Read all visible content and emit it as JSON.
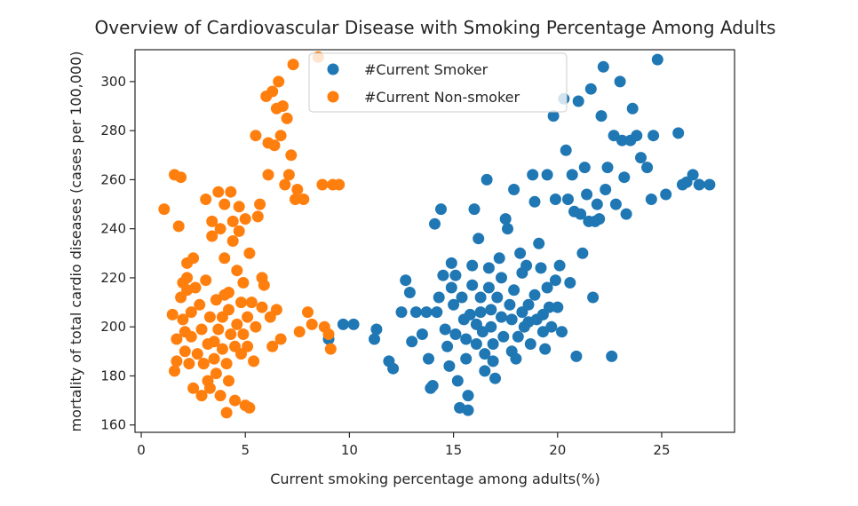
{
  "chart_data": {
    "type": "scatter",
    "title": "Overview of Cardiovascular Disease with Smoking Percentage Among Adults",
    "xlabel": "Current smoking percentage among adults(%)",
    "ylabel": "mortality of total cardio diseases (cases per 100,000)",
    "xlim": [
      -0.3,
      28.5
    ],
    "ylim": [
      157,
      313
    ],
    "xticks": [
      0,
      5,
      10,
      15,
      20,
      25
    ],
    "yticks": [
      160,
      180,
      200,
      220,
      240,
      260,
      280,
      300
    ],
    "grid": false,
    "legend_position": "upper-center",
    "series": [
      {
        "name": "#Current Smoker",
        "color": "#1f77b4",
        "points": [
          [
            9.0,
            195
          ],
          [
            9.7,
            201
          ],
          [
            10.2,
            201
          ],
          [
            11.2,
            195
          ],
          [
            11.3,
            199
          ],
          [
            11.9,
            186
          ],
          [
            12.1,
            183
          ],
          [
            12.5,
            206
          ],
          [
            12.7,
            219
          ],
          [
            12.9,
            214
          ],
          [
            13.0,
            194
          ],
          [
            13.2,
            206
          ],
          [
            13.5,
            197
          ],
          [
            13.7,
            206
          ],
          [
            13.8,
            187
          ],
          [
            13.9,
            175
          ],
          [
            14.0,
            176
          ],
          [
            14.1,
            242
          ],
          [
            14.3,
            212
          ],
          [
            14.2,
            206
          ],
          [
            14.4,
            248
          ],
          [
            14.5,
            221
          ],
          [
            14.6,
            199
          ],
          [
            14.7,
            192
          ],
          [
            14.8,
            184
          ],
          [
            14.9,
            226
          ],
          [
            14.9,
            216
          ],
          [
            15.0,
            209
          ],
          [
            15.1,
            197
          ],
          [
            15.1,
            221
          ],
          [
            15.2,
            178
          ],
          [
            15.3,
            167
          ],
          [
            15.4,
            212
          ],
          [
            15.5,
            203
          ],
          [
            15.6,
            195
          ],
          [
            15.6,
            187
          ],
          [
            15.7,
            172
          ],
          [
            15.7,
            166
          ],
          [
            15.8,
            205
          ],
          [
            15.9,
            225
          ],
          [
            15.9,
            217
          ],
          [
            16.0,
            248
          ],
          [
            16.1,
            201
          ],
          [
            16.1,
            193
          ],
          [
            16.2,
            236
          ],
          [
            16.3,
            212
          ],
          [
            16.3,
            206
          ],
          [
            16.4,
            198
          ],
          [
            16.5,
            189
          ],
          [
            16.5,
            182
          ],
          [
            16.6,
            260
          ],
          [
            16.7,
            224
          ],
          [
            16.7,
            216
          ],
          [
            16.8,
            207
          ],
          [
            16.8,
            200
          ],
          [
            16.9,
            193
          ],
          [
            16.9,
            186
          ],
          [
            17.0,
            179
          ],
          [
            17.1,
            212
          ],
          [
            17.2,
            228
          ],
          [
            17.3,
            220
          ],
          [
            17.3,
            204
          ],
          [
            17.4,
            196
          ],
          [
            17.5,
            244
          ],
          [
            17.6,
            240
          ],
          [
            17.7,
            209
          ],
          [
            17.8,
            203
          ],
          [
            17.8,
            190
          ],
          [
            17.9,
            256
          ],
          [
            17.9,
            215
          ],
          [
            18.0,
            187
          ],
          [
            18.1,
            196
          ],
          [
            18.2,
            230
          ],
          [
            18.3,
            222
          ],
          [
            18.3,
            206
          ],
          [
            18.4,
            200
          ],
          [
            18.5,
            225
          ],
          [
            18.6,
            209
          ],
          [
            18.6,
            202
          ],
          [
            18.7,
            193
          ],
          [
            18.8,
            262
          ],
          [
            18.9,
            251
          ],
          [
            18.9,
            213
          ],
          [
            19.0,
            203
          ],
          [
            19.1,
            234
          ],
          [
            19.2,
            224
          ],
          [
            19.3,
            205
          ],
          [
            19.3,
            198
          ],
          [
            19.4,
            191
          ],
          [
            19.5,
            262
          ],
          [
            19.5,
            216
          ],
          [
            19.6,
            208
          ],
          [
            19.7,
            200
          ],
          [
            19.8,
            286
          ],
          [
            19.9,
            252
          ],
          [
            19.9,
            219
          ],
          [
            20.0,
            208
          ],
          [
            20.1,
            225
          ],
          [
            20.2,
            198
          ],
          [
            20.3,
            293
          ],
          [
            20.4,
            272
          ],
          [
            20.5,
            252
          ],
          [
            20.6,
            218
          ],
          [
            20.7,
            262
          ],
          [
            20.8,
            247
          ],
          [
            20.9,
            188
          ],
          [
            21.0,
            292
          ],
          [
            21.1,
            246
          ],
          [
            21.2,
            230
          ],
          [
            21.3,
            265
          ],
          [
            21.4,
            254
          ],
          [
            21.5,
            243
          ],
          [
            21.6,
            297
          ],
          [
            21.7,
            212
          ],
          [
            21.8,
            243
          ],
          [
            21.9,
            250
          ],
          [
            22.0,
            244
          ],
          [
            22.1,
            286
          ],
          [
            22.2,
            306
          ],
          [
            22.3,
            256
          ],
          [
            22.4,
            265
          ],
          [
            22.6,
            188
          ],
          [
            22.7,
            278
          ],
          [
            22.8,
            250
          ],
          [
            23.0,
            300
          ],
          [
            23.1,
            276
          ],
          [
            23.2,
            261
          ],
          [
            23.3,
            246
          ],
          [
            23.5,
            276
          ],
          [
            23.6,
            289
          ],
          [
            23.8,
            278
          ],
          [
            24.0,
            269
          ],
          [
            24.3,
            265
          ],
          [
            24.5,
            252
          ],
          [
            24.6,
            278
          ],
          [
            24.8,
            309
          ],
          [
            25.2,
            254
          ],
          [
            25.8,
            279
          ],
          [
            26.0,
            258
          ],
          [
            26.2,
            259
          ],
          [
            26.5,
            262
          ],
          [
            26.8,
            258
          ],
          [
            27.3,
            258
          ]
        ]
      },
      {
        "name": "#Current Non-smoker",
        "color": "#ff7f0e",
        "points": [
          [
            1.1,
            248
          ],
          [
            1.5,
            205
          ],
          [
            1.6,
            182
          ],
          [
            1.6,
            262
          ],
          [
            1.7,
            186
          ],
          [
            1.7,
            195
          ],
          [
            1.8,
            241
          ],
          [
            1.9,
            261
          ],
          [
            1.9,
            212
          ],
          [
            2.0,
            203
          ],
          [
            2.0,
            218
          ],
          [
            2.1,
            190
          ],
          [
            2.1,
            198
          ],
          [
            2.2,
            215
          ],
          [
            2.2,
            226
          ],
          [
            2.3,
            185
          ],
          [
            2.4,
            206
          ],
          [
            2.4,
            196
          ],
          [
            2.5,
            175
          ],
          [
            2.5,
            228
          ],
          [
            2.6,
            216
          ],
          [
            2.7,
            189
          ],
          [
            2.8,
            209
          ],
          [
            2.9,
            172
          ],
          [
            2.9,
            199
          ],
          [
            3.0,
            185
          ],
          [
            3.1,
            219
          ],
          [
            3.1,
            252
          ],
          [
            3.2,
            193
          ],
          [
            3.2,
            178
          ],
          [
            3.3,
            204
          ],
          [
            3.3,
            175
          ],
          [
            3.4,
            243
          ],
          [
            3.4,
            237
          ],
          [
            3.5,
            194
          ],
          [
            3.5,
            187
          ],
          [
            3.6,
            211
          ],
          [
            3.6,
            181
          ],
          [
            3.7,
            199
          ],
          [
            3.7,
            255
          ],
          [
            3.8,
            172
          ],
          [
            3.8,
            240
          ],
          [
            3.9,
            204
          ],
          [
            3.9,
            191
          ],
          [
            4.0,
            250
          ],
          [
            4.0,
            228
          ],
          [
            4.1,
            165
          ],
          [
            4.1,
            185
          ],
          [
            4.2,
            214
          ],
          [
            4.2,
            207
          ],
          [
            4.2,
            178
          ],
          [
            4.3,
            197
          ],
          [
            4.3,
            255
          ],
          [
            4.4,
            243
          ],
          [
            4.4,
            235
          ],
          [
            4.5,
            170
          ],
          [
            4.5,
            192
          ],
          [
            4.6,
            223
          ],
          [
            4.6,
            201
          ],
          [
            4.7,
            249
          ],
          [
            4.7,
            239
          ],
          [
            4.8,
            210
          ],
          [
            4.8,
            189
          ],
          [
            4.9,
            218
          ],
          [
            4.9,
            197
          ],
          [
            5.0,
            168
          ],
          [
            5.0,
            244
          ],
          [
            5.1,
            204
          ],
          [
            5.1,
            192
          ],
          [
            5.2,
            167
          ],
          [
            5.2,
            230
          ],
          [
            5.3,
            210
          ],
          [
            5.4,
            186
          ],
          [
            5.5,
            278
          ],
          [
            5.5,
            200
          ],
          [
            5.6,
            245
          ],
          [
            5.7,
            250
          ],
          [
            5.8,
            208
          ],
          [
            5.9,
            217
          ],
          [
            6.0,
            294
          ],
          [
            6.1,
            275
          ],
          [
            6.1,
            262
          ],
          [
            6.2,
            204
          ],
          [
            6.3,
            296
          ],
          [
            6.3,
            192
          ],
          [
            6.4,
            274
          ],
          [
            6.5,
            289
          ],
          [
            6.5,
            207
          ],
          [
            6.6,
            300
          ],
          [
            6.7,
            278
          ],
          [
            6.8,
            290
          ],
          [
            6.9,
            258
          ],
          [
            7.0,
            285
          ],
          [
            7.1,
            262
          ],
          [
            7.2,
            270
          ],
          [
            7.3,
            307
          ],
          [
            7.4,
            252
          ],
          [
            7.5,
            256
          ],
          [
            7.6,
            198
          ],
          [
            7.8,
            252
          ],
          [
            8.0,
            206
          ],
          [
            8.2,
            201
          ],
          [
            8.5,
            310
          ],
          [
            8.7,
            258
          ],
          [
            8.8,
            200
          ],
          [
            9.0,
            197
          ],
          [
            9.1,
            191
          ],
          [
            9.2,
            258
          ],
          [
            9.5,
            258
          ],
          [
            6.7,
            195
          ],
          [
            4.0,
            213
          ],
          [
            3.0,
            185
          ],
          [
            2.2,
            220
          ],
          [
            5.8,
            220
          ]
        ]
      }
    ]
  }
}
